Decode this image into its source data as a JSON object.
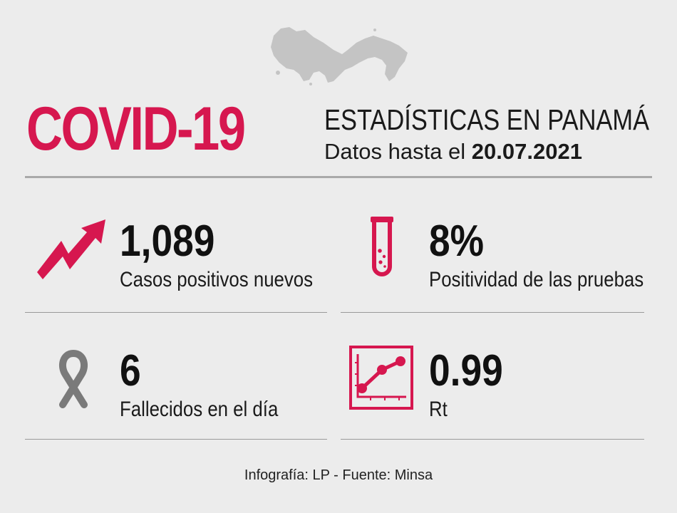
{
  "header": {
    "title": "COVID-19",
    "subtitle": "ESTADÍSTICAS EN PANAMÁ",
    "date_prefix": "Datos hasta el ",
    "date": "20.07.2021"
  },
  "stats": [
    {
      "value": "1,089",
      "label": "Casos positivos nuevos",
      "icon": "trend-up-arrow-icon"
    },
    {
      "value": "8%",
      "label": "Positividad de las pruebas",
      "icon": "test-tube-icon"
    },
    {
      "value": "6",
      "label": "Fallecidos en el día",
      "icon": "mourning-ribbon-icon"
    },
    {
      "value": "0.99",
      "label": "Rt",
      "icon": "line-chart-icon"
    }
  ],
  "footer": {
    "credit": "Infografía: LP - Fuente: Minsa"
  },
  "colors": {
    "accent": "#d6174f",
    "background": "#ececec",
    "map": "#c4c4c4",
    "ribbon": "#7a7a7a"
  }
}
